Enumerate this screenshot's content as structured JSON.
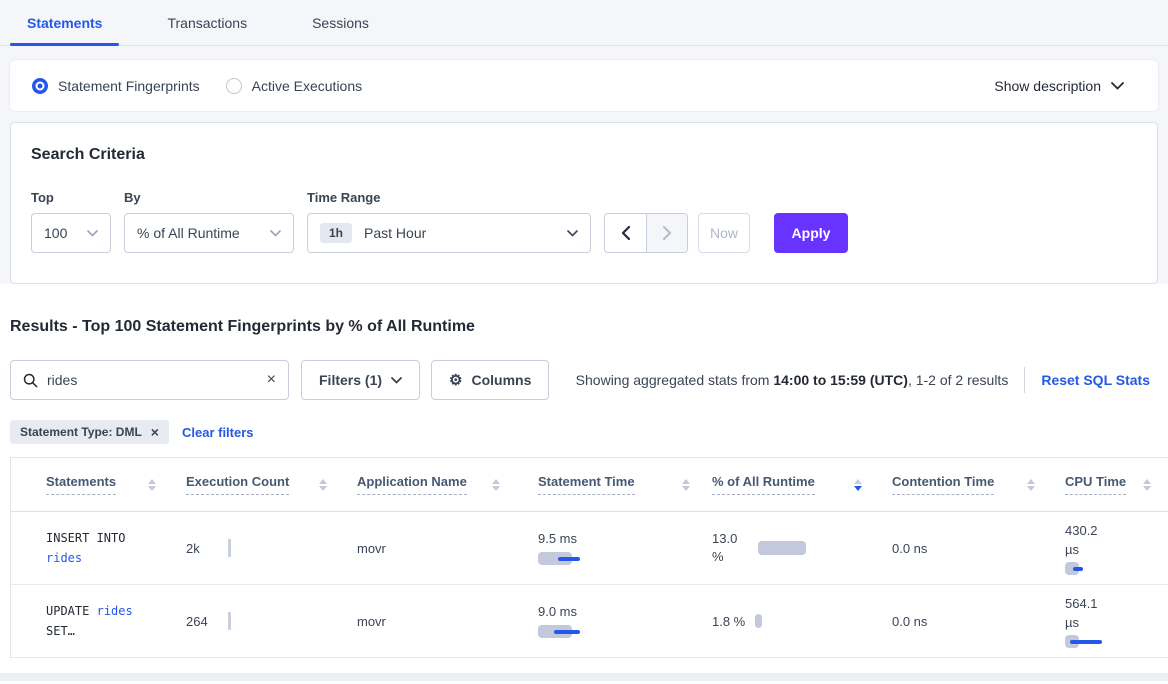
{
  "tabs": {
    "statements": "Statements",
    "transactions": "Transactions",
    "sessions": "Sessions"
  },
  "view_toggle": {
    "fingerprints_label": "Statement Fingerprints",
    "active_executions_label": "Active Executions",
    "show_description_label": "Show description"
  },
  "search_criteria": {
    "title": "Search Criteria",
    "top_label": "Top",
    "top_value": "100",
    "by_label": "By",
    "by_value": "% of All Runtime",
    "time_range_label": "Time Range",
    "time_range_badge": "1h",
    "time_range_value": "Past Hour",
    "now_label": "Now",
    "apply_label": "Apply"
  },
  "results": {
    "heading": "Results - Top 100 Statement Fingerprints by % of All Runtime",
    "search_value": "rides",
    "filters_label": "Filters (1)",
    "columns_label": "Columns",
    "summary_prefix": "Showing aggregated stats from ",
    "summary_bold": "14:00 to 15:59 (UTC)",
    "summary_suffix": ", 1-2 of 2 results",
    "reset_label": "Reset SQL Stats",
    "filter_chip": "Statement Type: DML",
    "clear_filters_label": "Clear filters"
  },
  "table": {
    "columns": [
      "Statements",
      "Execution Count",
      "Application Name",
      "Statement Time",
      "% of All Runtime",
      "Contention Time",
      "CPU Time"
    ],
    "sorted_column": "% of All Runtime",
    "sort_direction": "desc",
    "rows": [
      {
        "sql_keyword": "INSERT INTO",
        "sql_link": "rides",
        "sql_tail": "",
        "exec_count": "2k",
        "app_name": "movr",
        "stmt_time": "9.5 ms",
        "pct_value": "13.0",
        "pct_unit": "%",
        "contention": "0.0 ns",
        "cpu_value": "430.2",
        "cpu_unit": "µs",
        "bars": {
          "stmt": {
            "gray": 34,
            "h": 13,
            "blue": 22,
            "blueLeft": 20
          },
          "pct": {
            "gray": 48,
            "h": 14
          },
          "cpu": {
            "gray": 14,
            "h": 13,
            "blue": 10,
            "blueLeft": 8
          }
        }
      },
      {
        "sql_keyword": "UPDATE",
        "sql_link": "rides",
        "sql_tail": "SET…",
        "exec_count": "264",
        "app_name": "movr",
        "stmt_time": "9.0 ms",
        "pct_value": "1.8 %",
        "pct_unit": "",
        "contention": "0.0 ns",
        "cpu_value": "564.1",
        "cpu_unit": "µs",
        "bars": {
          "stmt": {
            "gray": 34,
            "h": 13,
            "blue": 26,
            "blueLeft": 16
          },
          "pct": {
            "gray": 7,
            "h": 14
          },
          "cpu": {
            "gray": 14,
            "h": 13,
            "blue": 32,
            "blueLeft": 5
          }
        }
      }
    ]
  },
  "colors": {
    "accent_blue": "#2458E8",
    "apply_purple": "#6933FF",
    "bar_gray": "#C3C9DB"
  }
}
